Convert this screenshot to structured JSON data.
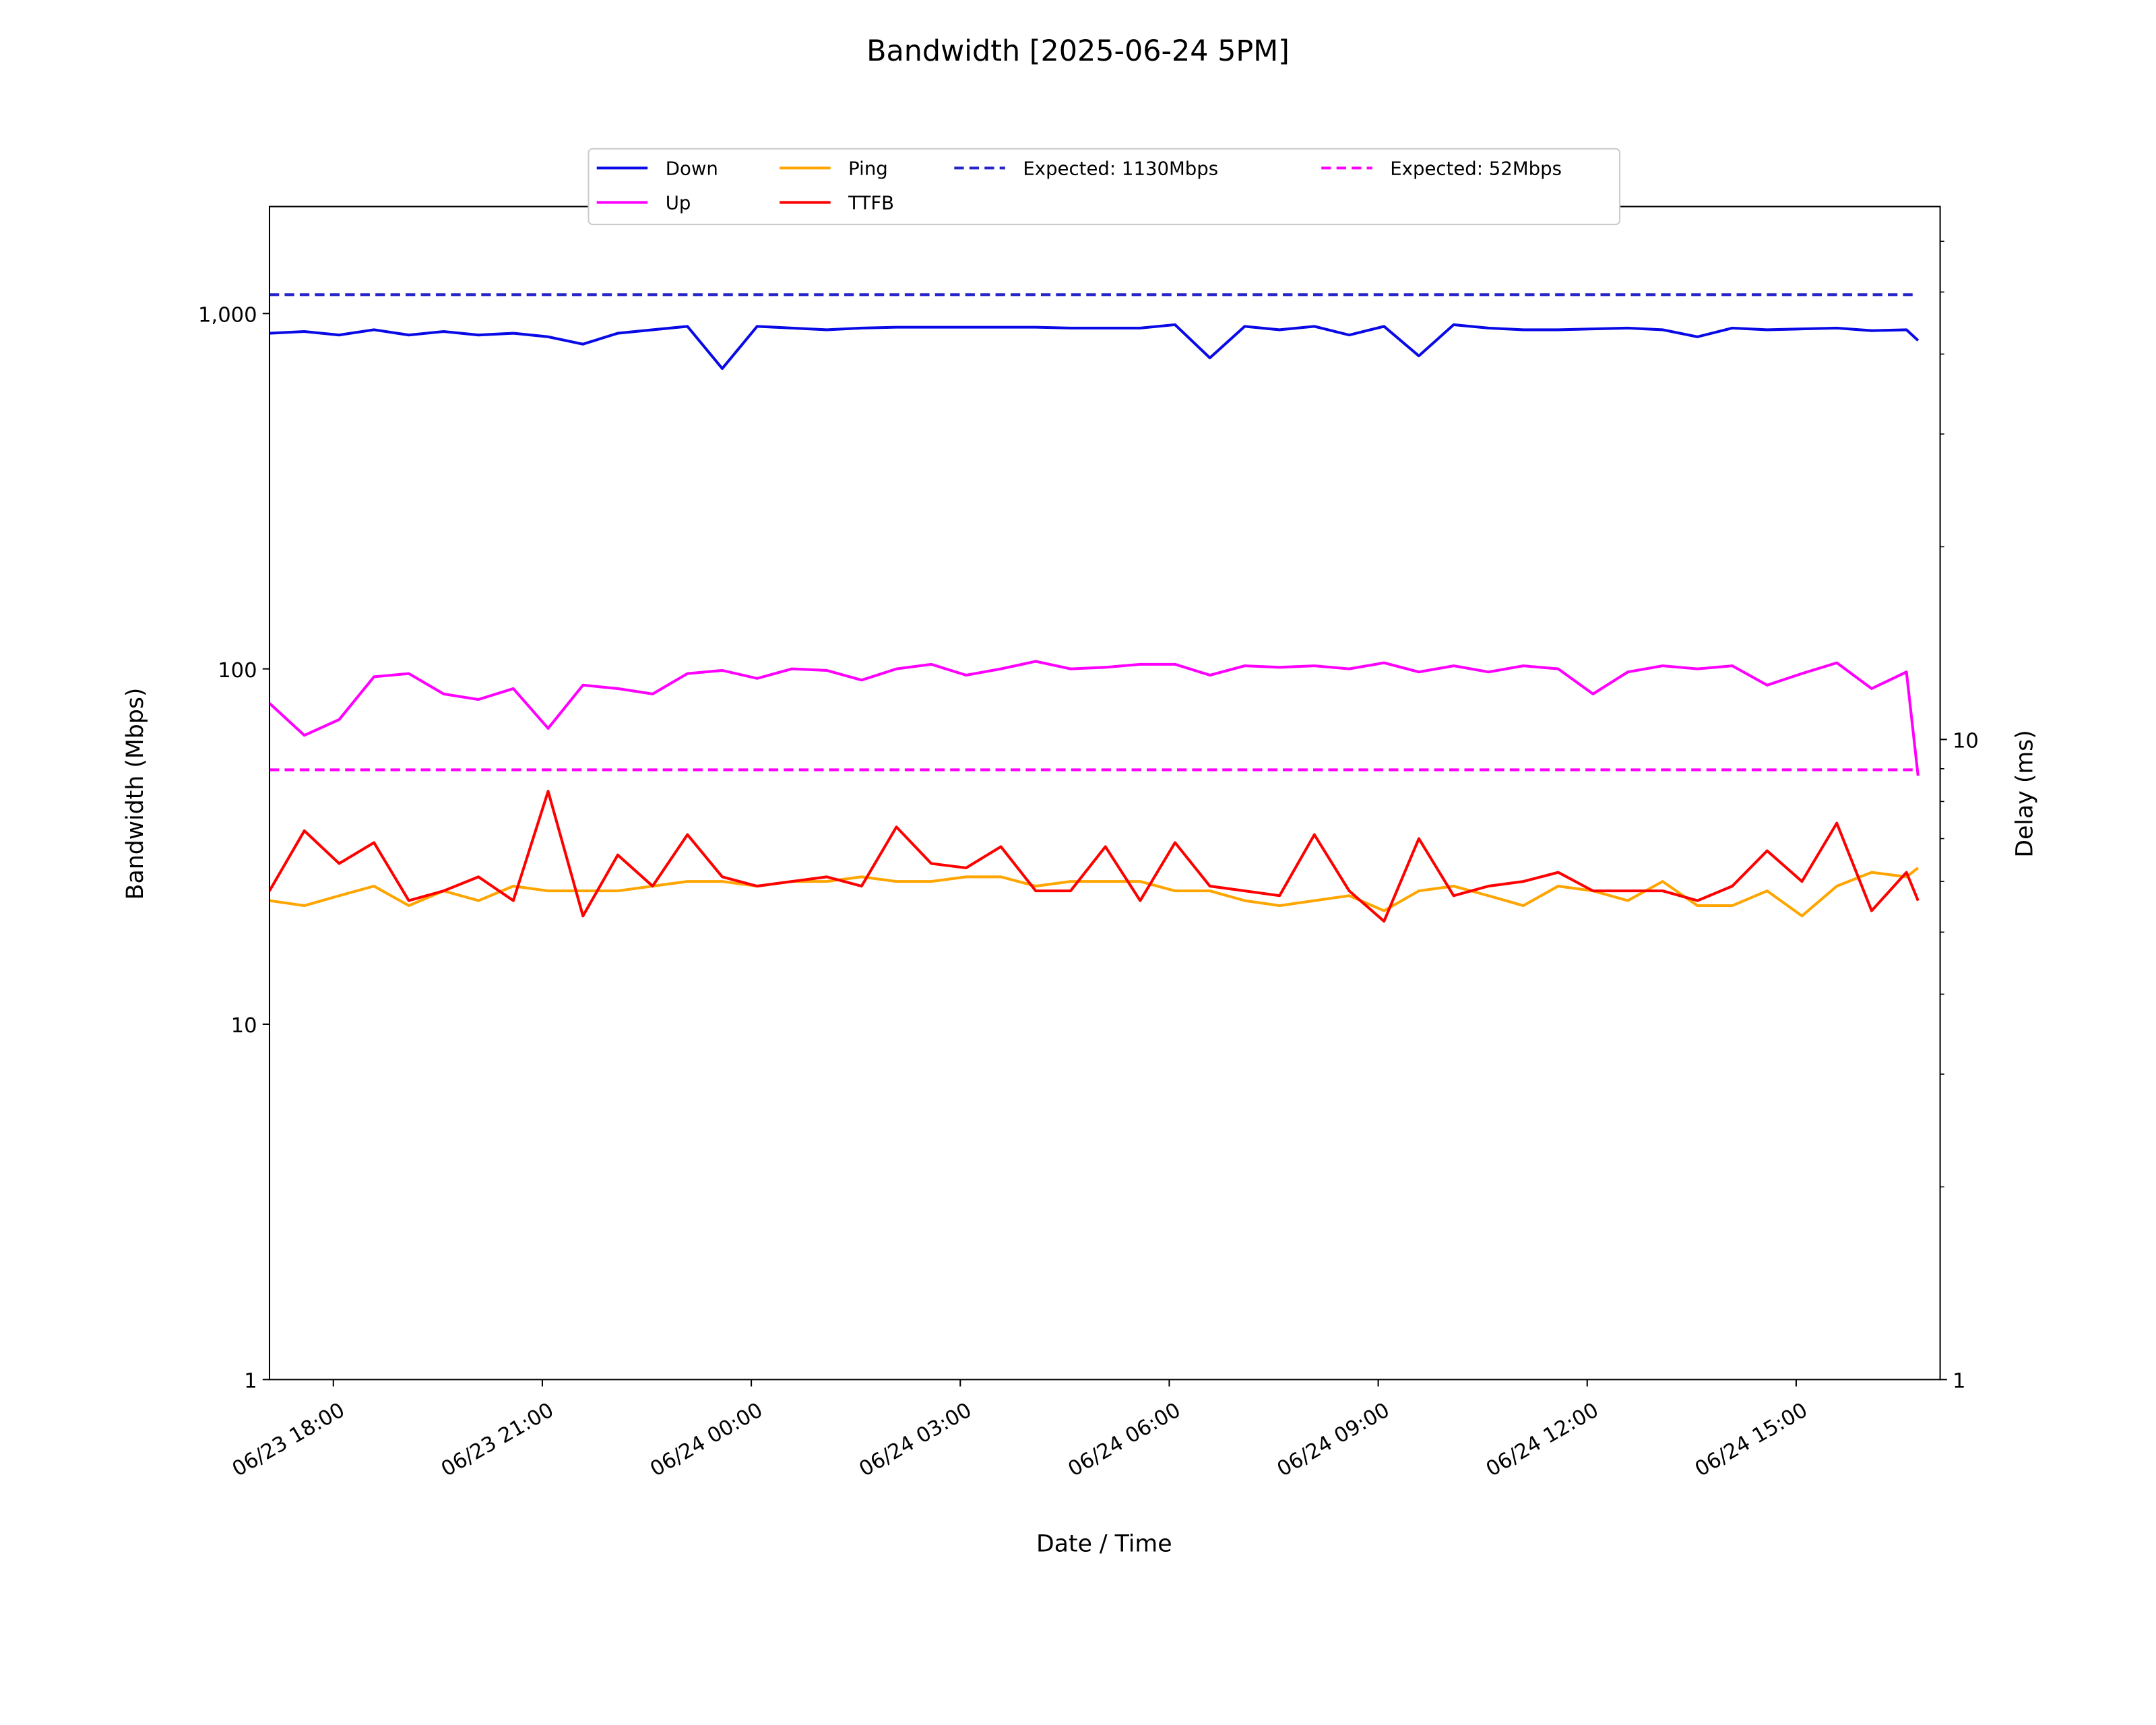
{
  "chart_data": {
    "type": "line",
    "title": "Bandwidth [2025-06-24 5PM]",
    "x_label": "Date / Time",
    "y_label": "Bandwidth (Mbps)",
    "y2_label": "Delay (ms)",
    "log_y": true,
    "log_y2": true,
    "legend": "upper center",
    "x": [
      "06/23 17:05",
      "06/23 17:35",
      "06/23 18:05",
      "06/23 18:35",
      "06/23 19:05",
      "06/23 19:35",
      "06/23 20:05",
      "06/23 20:35",
      "06/23 21:05",
      "06/23 21:35",
      "06/23 22:05",
      "06/23 22:35",
      "06/23 23:05",
      "06/23 23:35",
      "06/24 00:05",
      "06/24 00:35",
      "06/24 01:05",
      "06/24 01:35",
      "06/24 02:05",
      "06/24 02:35",
      "06/24 03:05",
      "06/24 03:35",
      "06/24 04:05",
      "06/24 04:35",
      "06/24 05:05",
      "06/24 05:35",
      "06/24 06:05",
      "06/24 06:35",
      "06/24 07:05",
      "06/24 07:35",
      "06/24 08:05",
      "06/24 08:35",
      "06/24 09:05",
      "06/24 09:35",
      "06/24 10:05",
      "06/24 10:35",
      "06/24 11:05",
      "06/24 11:35",
      "06/24 12:05",
      "06/24 12:35",
      "06/24 13:05",
      "06/24 13:35",
      "06/24 14:05",
      "06/24 14:35",
      "06/24 15:05",
      "06/24 15:35",
      "06/24 16:05",
      "06/24 16:35",
      "06/24 16:45"
    ],
    "xlim": [
      "06/23 17:05",
      "06/24 17:04"
    ],
    "xticks": [
      "06/23 18:00",
      "06/23 21:00",
      "06/24 00:00",
      "06/24 03:00",
      "06/24 06:00",
      "06/24 09:00",
      "06/24 12:00",
      "06/24 15:00"
    ],
    "ylim": [
      1,
      2000
    ],
    "yticks": [
      1,
      10,
      100,
      {
        "value": 1000,
        "label": "1,000"
      }
    ],
    "y2lim": [
      1,
      68
    ],
    "y2ticks": [
      1,
      10
    ],
    "y2minorticks": [
      2,
      3,
      4,
      5,
      6,
      7,
      8,
      9,
      20,
      30,
      40,
      50,
      60
    ],
    "series": [
      {
        "name": "Down",
        "color": "#0a0ae6",
        "values": [
          880,
          890,
          870,
          900,
          870,
          890,
          870,
          880,
          860,
          820,
          880,
          900,
          920,
          700,
          920,
          910,
          900,
          910,
          915,
          915,
          915,
          915,
          915,
          910,
          910,
          910,
          930,
          750,
          920,
          900,
          920,
          870,
          920,
          760,
          930,
          910,
          900,
          900,
          905,
          910,
          900,
          860,
          910,
          900,
          905,
          910,
          895,
          900,
          840
        ]
      },
      {
        "name": "Up",
        "color": "#ff00ff",
        "values": [
          80,
          65,
          72,
          95,
          97,
          85,
          82,
          88,
          68,
          90,
          88,
          85,
          97,
          99,
          94,
          100,
          99,
          93,
          100,
          103,
          96,
          100,
          105,
          100,
          101,
          103,
          103,
          96,
          102,
          101,
          102,
          100,
          104,
          98,
          102,
          98,
          102,
          100,
          85,
          98,
          102,
          100,
          102,
          90,
          97,
          104,
          88,
          98,
          50
        ]
      },
      {
        "name": "Ping",
        "color": "#ffa500",
        "axis": "y2",
        "values": [
          5.6,
          5.5,
          5.7,
          5.9,
          5.5,
          5.8,
          5.6,
          5.9,
          5.8,
          5.8,
          5.8,
          5.9,
          6.0,
          6.0,
          5.9,
          6.0,
          6.0,
          6.1,
          6.0,
          6.0,
          6.1,
          6.1,
          5.9,
          6.0,
          6.0,
          6.0,
          5.8,
          5.8,
          5.6,
          5.5,
          5.6,
          5.7,
          5.4,
          5.8,
          5.9,
          5.7,
          5.5,
          5.9,
          5.8,
          5.6,
          6.0,
          5.5,
          5.5,
          5.8,
          5.3,
          5.9,
          6.2,
          6.1,
          6.3
        ]
      },
      {
        "name": "TTFB",
        "color": "#ff0000",
        "axis": "y2",
        "values": [
          5.8,
          7.2,
          6.4,
          6.9,
          5.6,
          5.8,
          6.1,
          5.6,
          8.3,
          5.3,
          6.6,
          5.9,
          7.1,
          6.1,
          5.9,
          6.0,
          6.1,
          5.9,
          7.3,
          6.4,
          6.3,
          6.8,
          5.8,
          5.8,
          6.8,
          5.6,
          6.9,
          5.9,
          5.8,
          5.7,
          7.1,
          5.8,
          5.2,
          7.0,
          5.7,
          5.9,
          6.0,
          6.2,
          5.8,
          5.8,
          5.8,
          5.6,
          5.9,
          6.7,
          6.0,
          7.4,
          5.4,
          6.2,
          5.6
        ]
      }
    ],
    "hlines": [
      {
        "name": "Expected: 1130Mbps",
        "value": 1130,
        "color": "#2424c8"
      },
      {
        "name": "Expected: 52Mbps",
        "value": 52,
        "color": "#ff00ff"
      }
    ]
  }
}
